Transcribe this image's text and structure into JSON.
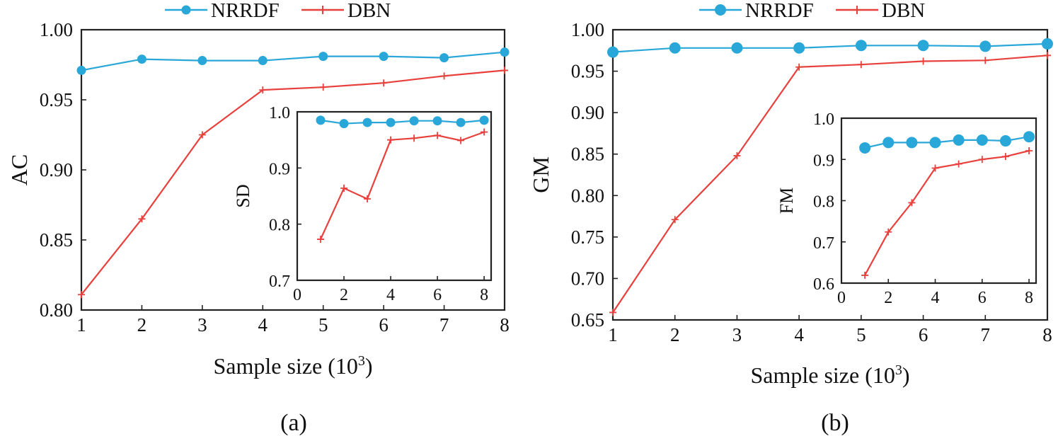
{
  "legend": {
    "series_a": "NRRDF",
    "series_b": "DBN",
    "color_a": "#2aa7d9",
    "color_b": "#e8403c"
  },
  "panel_labels": [
    "(a)",
    "(b)"
  ],
  "chart_data": [
    {
      "id": "a-main",
      "type": "line",
      "title": "",
      "xlabel": "Sample size (10",
      "xlabel_sup": "3",
      "xlabel_end": ")",
      "ylabel": "AC",
      "xlim": [
        1,
        8
      ],
      "ylim": [
        0.8,
        1.0
      ],
      "x_ticks": [
        1,
        2,
        3,
        4,
        5,
        6,
        7,
        8
      ],
      "y_ticks": [
        0.8,
        0.85,
        0.9,
        0.95,
        1.0
      ],
      "y_tick_labels": [
        "0.80",
        "0.85",
        "0.90",
        "0.95",
        "1.00"
      ],
      "x": [
        1,
        2,
        3,
        4,
        5,
        6,
        7,
        8
      ],
      "series": [
        {
          "name": "NRRDF",
          "values": [
            0.971,
            0.979,
            0.978,
            0.978,
            0.981,
            0.981,
            0.98,
            0.984
          ]
        },
        {
          "name": "DBN",
          "values": [
            0.811,
            0.865,
            0.925,
            0.957,
            0.959,
            0.962,
            0.967,
            0.971
          ]
        }
      ]
    },
    {
      "id": "a-inset",
      "type": "line",
      "title": "",
      "xlabel": "",
      "ylabel": "SD",
      "xlim": [
        0,
        8.3
      ],
      "ylim": [
        0.7,
        1.0
      ],
      "x_ticks": [
        0,
        2,
        4,
        6,
        8
      ],
      "y_ticks": [
        0.7,
        0.8,
        0.9,
        1.0
      ],
      "y_tick_labels": [
        "0.7",
        "0.8",
        "0.9",
        "1.0"
      ],
      "x": [
        1,
        2,
        3,
        4,
        5,
        6,
        7,
        8
      ],
      "series": [
        {
          "name": "NRRDF",
          "values": [
            0.985,
            0.979,
            0.981,
            0.981,
            0.984,
            0.984,
            0.981,
            0.985
          ]
        },
        {
          "name": "DBN",
          "values": [
            0.773,
            0.864,
            0.845,
            0.95,
            0.953,
            0.958,
            0.949,
            0.964
          ]
        }
      ]
    },
    {
      "id": "b-main",
      "type": "line",
      "title": "",
      "xlabel": "Sample size (10",
      "xlabel_sup": "3",
      "xlabel_end": ")",
      "ylabel": "GM",
      "xlim": [
        1,
        8
      ],
      "ylim": [
        0.65,
        1.0
      ],
      "x_ticks": [
        1,
        2,
        3,
        4,
        5,
        6,
        7,
        8
      ],
      "y_ticks": [
        0.65,
        0.7,
        0.75,
        0.8,
        0.85,
        0.9,
        0.95,
        1.0
      ],
      "y_tick_labels": [
        "0.65",
        "0.70",
        "0.75",
        "0.80",
        "0.85",
        "0.90",
        "0.95",
        "1.00"
      ],
      "x": [
        1,
        2,
        3,
        4,
        5,
        6,
        7,
        8
      ],
      "series": [
        {
          "name": "NRRDF",
          "values": [
            0.973,
            0.978,
            0.978,
            0.978,
            0.981,
            0.981,
            0.98,
            0.983
          ]
        },
        {
          "name": "DBN",
          "values": [
            0.659,
            0.771,
            0.848,
            0.955,
            0.958,
            0.962,
            0.963,
            0.969
          ]
        }
      ]
    },
    {
      "id": "b-inset",
      "type": "line",
      "title": "",
      "xlabel": "",
      "ylabel": "FM",
      "xlim": [
        0,
        8.3
      ],
      "ylim": [
        0.6,
        1.0
      ],
      "x_ticks": [
        0,
        2,
        4,
        6,
        8
      ],
      "y_ticks": [
        0.6,
        0.7,
        0.8,
        0.9,
        1.0
      ],
      "y_tick_labels": [
        "0.6",
        "0.7",
        "0.8",
        "0.9",
        "1.0"
      ],
      "x": [
        1,
        2,
        3,
        4,
        5,
        6,
        7,
        8
      ],
      "series": [
        {
          "name": "NRRDF",
          "values": [
            0.928,
            0.941,
            0.941,
            0.941,
            0.947,
            0.947,
            0.945,
            0.955
          ]
        },
        {
          "name": "DBN",
          "values": [
            0.619,
            0.724,
            0.795,
            0.879,
            0.889,
            0.9,
            0.907,
            0.921
          ]
        }
      ]
    }
  ]
}
